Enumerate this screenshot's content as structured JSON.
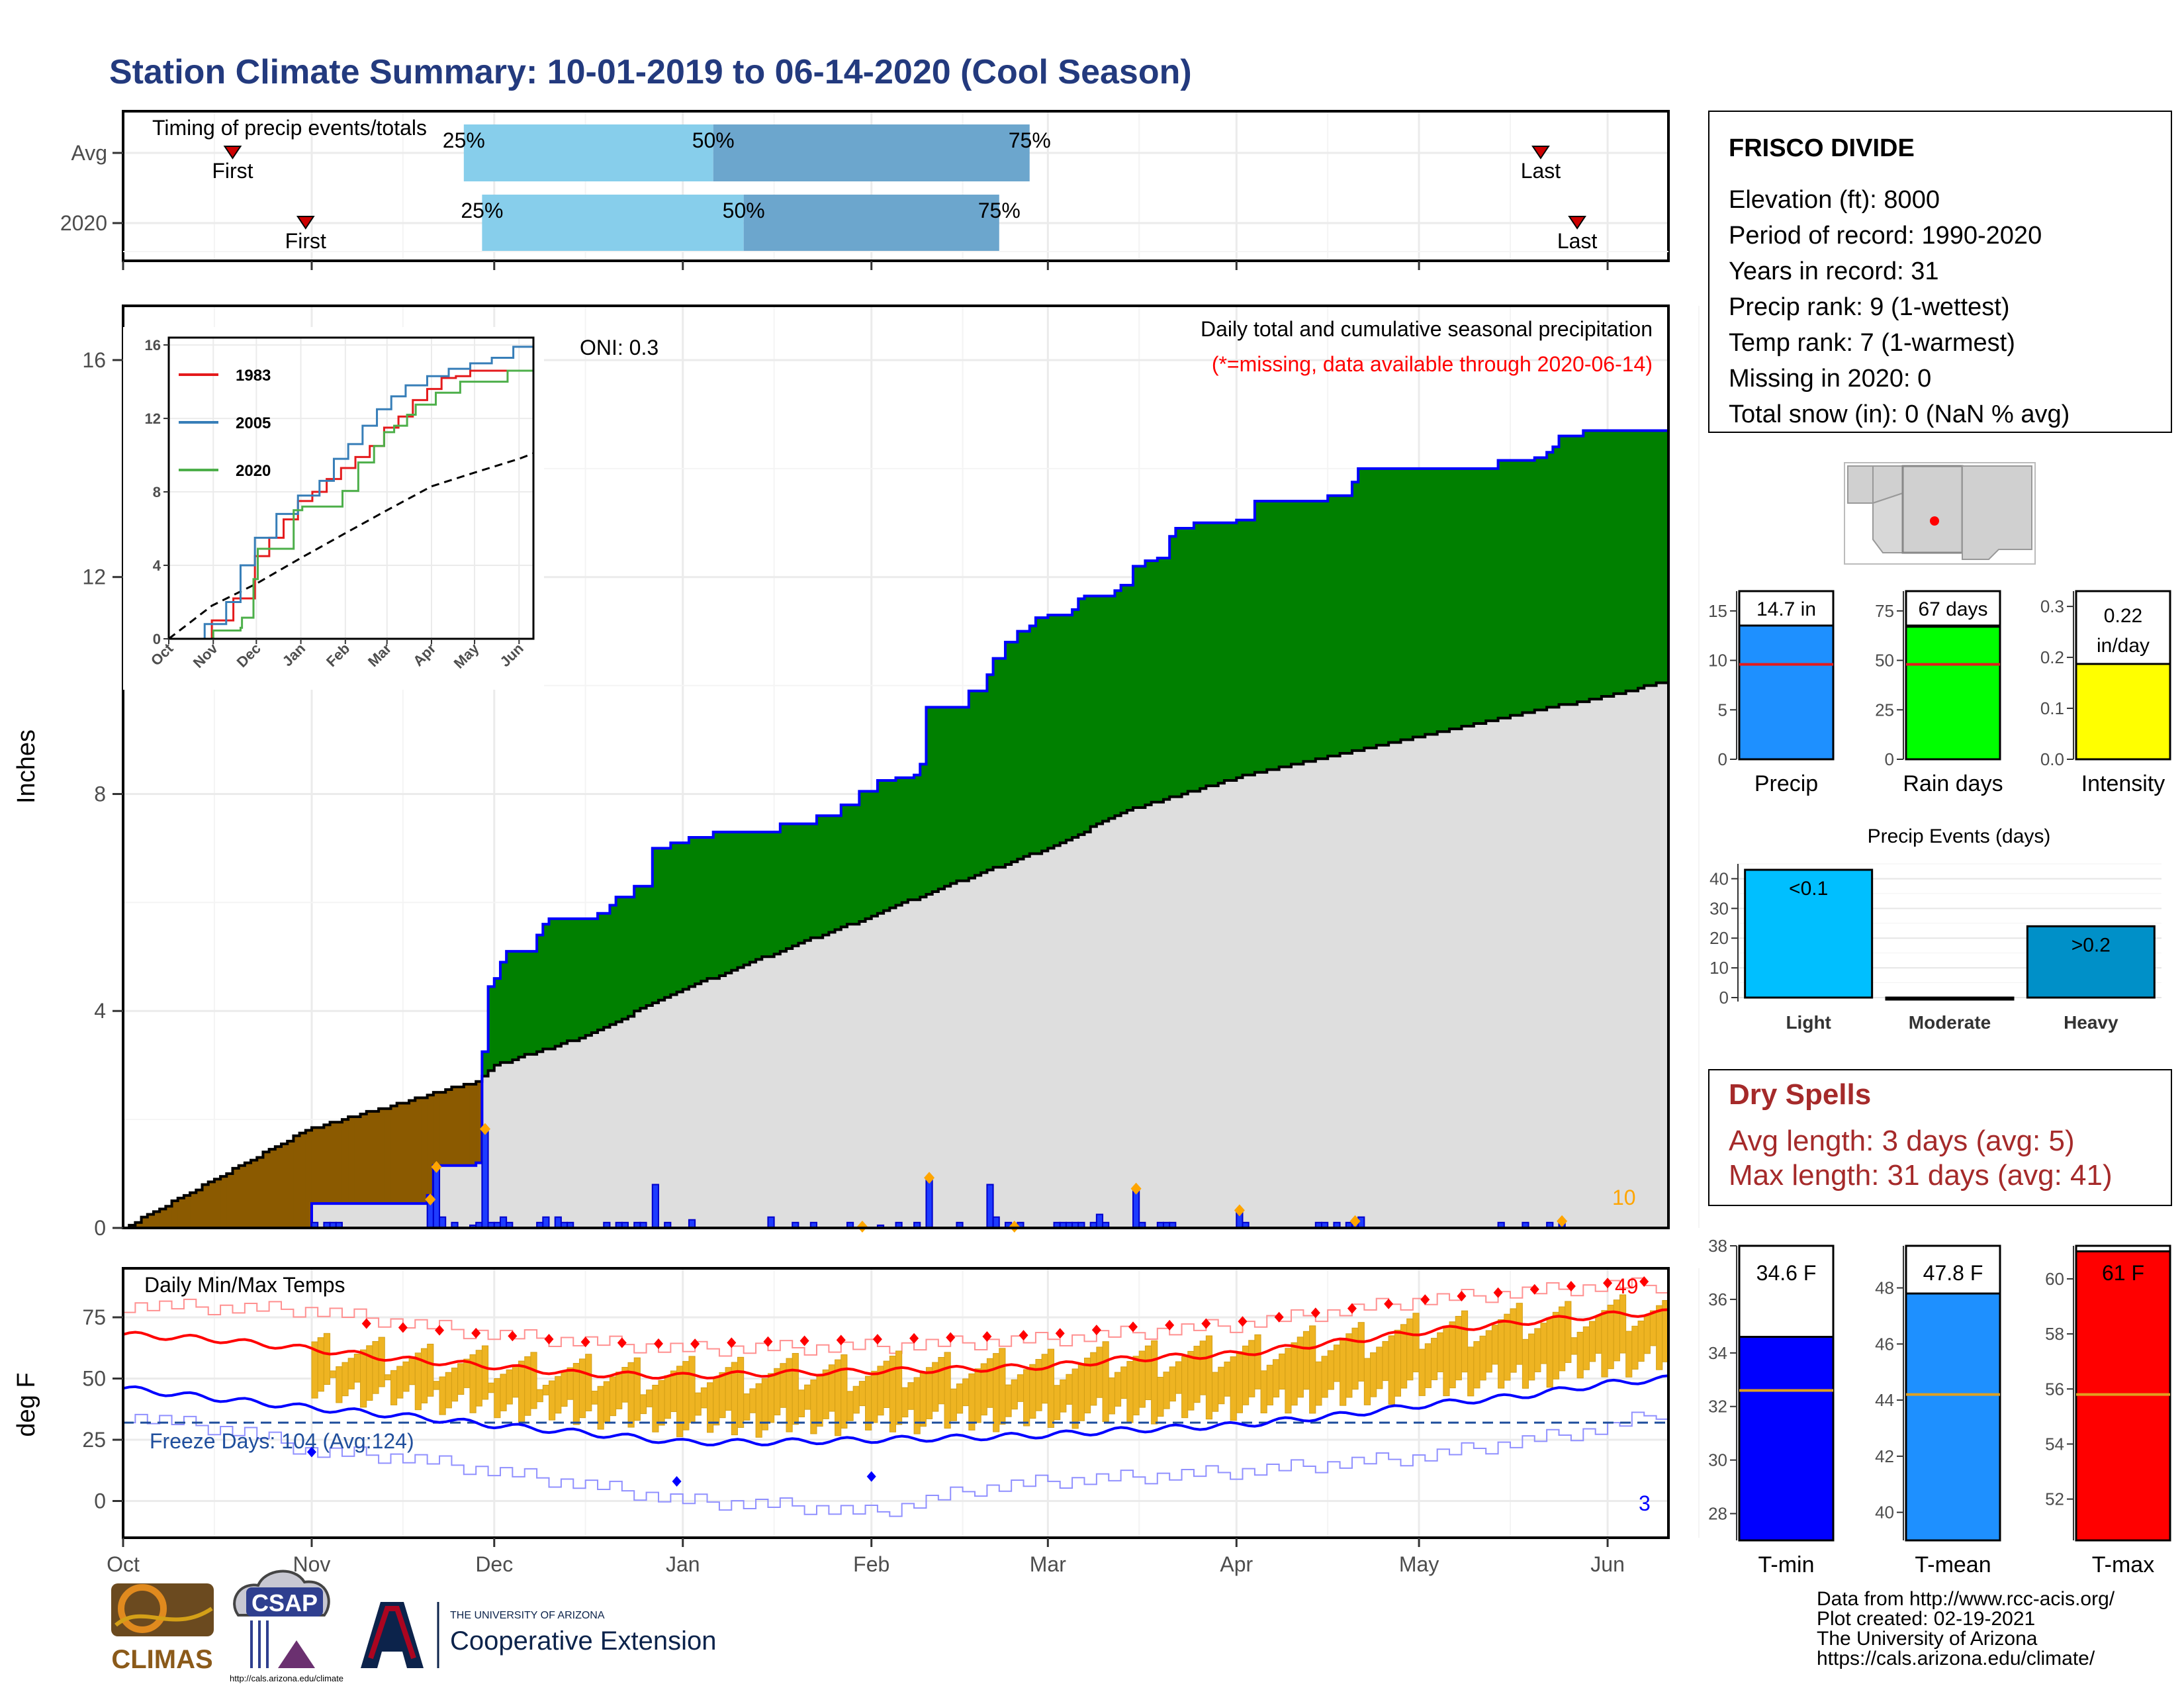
{
  "title": "Station Climate Summary: 10-01-2019 to 06-14-2020 (Cool Season)",
  "station": {
    "name": "FRISCO DIVIDE",
    "lines": [
      "Elevation (ft): 8000",
      "Period of record: 1990-2020",
      "Years in record: 31",
      "Precip rank: 9 (1-wettest)",
      "Temp rank: 7 (1-warmest)",
      "Missing in 2020: 0",
      "Total snow (in): 0 (NaN % avg)"
    ]
  },
  "timing": {
    "label": "Timing of precip events/totals",
    "rows": [
      {
        "name": "Avg",
        "first_doy": 18,
        "last_doy": 233,
        "p25": 56,
        "p50": 97,
        "p75": 149,
        "first_label": "First",
        "last_label": "Last",
        "pct": [
          "25%",
          "50%",
          "75%"
        ]
      },
      {
        "name": "2020",
        "first_doy": 30,
        "last_doy": 239,
        "p25": 59,
        "p50": 102,
        "p75": 144,
        "first_label": "First",
        "last_label": "Last",
        "pct": [
          "25%",
          "50%",
          "75%"
        ]
      }
    ]
  },
  "months": [
    "Oct",
    "Nov",
    "Dec",
    "Jan",
    "Feb",
    "Mar",
    "Apr",
    "May",
    "Jun"
  ],
  "month_start_doy": [
    0,
    31,
    61,
    92,
    123,
    152,
    183,
    213,
    244
  ],
  "precip_panel": {
    "ylabel": "Inches",
    "yticks": [
      0,
      4,
      8,
      12,
      16
    ],
    "annotation_title": "Daily total and cumulative seasonal precipitation",
    "annotation_missing": "(*=missing, data available through 2020-06-14)",
    "oni": "ONI: 0.3",
    "corner_count": "10",
    "cumulative_2020": [
      [
        0,
        0
      ],
      [
        30,
        0
      ],
      [
        31,
        0.45
      ],
      [
        50,
        0.6
      ],
      [
        51,
        1.15
      ],
      [
        58,
        1.2
      ],
      [
        59,
        3.25
      ],
      [
        60,
        4.45
      ],
      [
        61,
        4.6
      ],
      [
        62,
        4.9
      ],
      [
        63,
        5.1
      ],
      [
        67,
        5.1
      ],
      [
        68,
        5.4
      ],
      [
        69,
        5.6
      ],
      [
        70,
        5.7
      ],
      [
        78,
        5.8
      ],
      [
        80,
        5.95
      ],
      [
        81,
        6.1
      ],
      [
        84,
        6.3
      ],
      [
        86,
        6.3
      ],
      [
        87,
        7.0
      ],
      [
        90,
        7.1
      ],
      [
        93,
        7.2
      ],
      [
        97,
        7.3
      ],
      [
        103,
        7.3
      ],
      [
        108,
        7.45
      ],
      [
        110,
        7.45
      ],
      [
        114,
        7.6
      ],
      [
        118,
        7.8
      ],
      [
        121,
        8.05
      ],
      [
        124,
        8.25
      ],
      [
        127,
        8.3
      ],
      [
        130,
        8.35
      ],
      [
        131,
        8.55
      ],
      [
        132,
        9.6
      ],
      [
        139,
        9.9
      ],
      [
        142,
        10.2
      ],
      [
        143,
        10.5
      ],
      [
        145,
        10.8
      ],
      [
        147,
        11.0
      ],
      [
        149,
        11.1
      ],
      [
        150,
        11.25
      ],
      [
        152,
        11.3
      ],
      [
        156,
        11.4
      ],
      [
        157,
        11.6
      ],
      [
        158,
        11.65
      ],
      [
        163,
        11.75
      ],
      [
        164,
        11.85
      ],
      [
        166,
        12.2
      ],
      [
        168,
        12.3
      ],
      [
        170,
        12.35
      ],
      [
        172,
        12.75
      ],
      [
        173,
        12.9
      ],
      [
        176,
        13.0
      ],
      [
        183,
        13.05
      ],
      [
        186,
        13.4
      ],
      [
        189,
        13.4
      ],
      [
        197,
        13.4
      ],
      [
        198,
        13.5
      ],
      [
        201,
        13.5
      ],
      [
        202,
        13.75
      ],
      [
        203,
        14.0
      ],
      [
        206,
        14.0
      ],
      [
        210,
        14.0
      ],
      [
        225,
        14.0
      ],
      [
        226,
        14.15
      ],
      [
        232,
        14.2
      ],
      [
        234,
        14.3
      ],
      [
        235,
        14.4
      ],
      [
        236,
        14.6
      ],
      [
        240,
        14.7
      ],
      [
        254,
        14.7
      ]
    ],
    "cumulative_avg": [
      [
        0,
        0
      ],
      [
        30,
        1.8
      ],
      [
        50,
        2.45
      ],
      [
        58,
        2.7
      ],
      [
        61,
        3.0
      ],
      [
        75,
        3.5
      ],
      [
        92,
        4.4
      ],
      [
        110,
        5.2
      ],
      [
        123,
        5.75
      ],
      [
        135,
        6.3
      ],
      [
        152,
        7.0
      ],
      [
        165,
        7.7
      ],
      [
        183,
        8.3
      ],
      [
        200,
        8.75
      ],
      [
        213,
        9.05
      ],
      [
        230,
        9.5
      ],
      [
        244,
        9.8
      ],
      [
        254,
        10.1
      ]
    ],
    "daily": [
      [
        31,
        0.1
      ],
      [
        33,
        0.1
      ],
      [
        34,
        0.1
      ],
      [
        35,
        0.1
      ],
      [
        50,
        0.5
      ],
      [
        51,
        1.1
      ],
      [
        52,
        0.2
      ],
      [
        54,
        0.1
      ],
      [
        57,
        0.05
      ],
      [
        58,
        0.1
      ],
      [
        59,
        1.8
      ],
      [
        60,
        0.1
      ],
      [
        61,
        0.1
      ],
      [
        62,
        0.2
      ],
      [
        63,
        0.1
      ],
      [
        68,
        0.1
      ],
      [
        69,
        0.2
      ],
      [
        71,
        0.2
      ],
      [
        72,
        0.1
      ],
      [
        73,
        0.1
      ],
      [
        79,
        0.1
      ],
      [
        81,
        0.1
      ],
      [
        82,
        0.1
      ],
      [
        84,
        0.1
      ],
      [
        85,
        0.1
      ],
      [
        87,
        0.8
      ],
      [
        89,
        0.1
      ],
      [
        93,
        0.15
      ],
      [
        106,
        0.2
      ],
      [
        110,
        0.1
      ],
      [
        113,
        0.1
      ],
      [
        119,
        0.1
      ],
      [
        124,
        0.05
      ],
      [
        127,
        0.1
      ],
      [
        130,
        0.1
      ],
      [
        132,
        0.9
      ],
      [
        137,
        0.1
      ],
      [
        142,
        0.8
      ],
      [
        143,
        0.2
      ],
      [
        145,
        0.1
      ],
      [
        147,
        0.1
      ],
      [
        153,
        0.1
      ],
      [
        154,
        0.1
      ],
      [
        155,
        0.1
      ],
      [
        156,
        0.1
      ],
      [
        157,
        0.1
      ],
      [
        159,
        0.1
      ],
      [
        160,
        0.25
      ],
      [
        161,
        0.1
      ],
      [
        166,
        0.7
      ],
      [
        167,
        0.1
      ],
      [
        170,
        0.1
      ],
      [
        171,
        0.1
      ],
      [
        172,
        0.1
      ],
      [
        183,
        0.3
      ],
      [
        184,
        0.1
      ],
      [
        196,
        0.1
      ],
      [
        197,
        0.1
      ],
      [
        199,
        0.1
      ],
      [
        201,
        0.1
      ],
      [
        202,
        0.1
      ],
      [
        203,
        0.2
      ],
      [
        226,
        0.1
      ],
      [
        230,
        0.1
      ],
      [
        234,
        0.1
      ],
      [
        236,
        0.1
      ]
    ],
    "trace_markers": [
      50,
      51,
      59,
      132,
      121,
      146,
      166,
      183,
      202,
      236
    ]
  },
  "inset": {
    "yticks": [
      0,
      4,
      8,
      12,
      16
    ],
    "months": [
      "Oct",
      "Nov",
      "Dec",
      "Jan",
      "Feb",
      "Mar",
      "Apr",
      "May",
      "Jun"
    ],
    "series": [
      {
        "name": "1983",
        "color": "#e41a1c",
        "points": [
          [
            0,
            0
          ],
          [
            30,
            1.0
          ],
          [
            45,
            2.2
          ],
          [
            60,
            4.5
          ],
          [
            70,
            5.5
          ],
          [
            80,
            6.5
          ],
          [
            90,
            7.5
          ],
          [
            100,
            8.0
          ],
          [
            110,
            8.7
          ],
          [
            120,
            9.3
          ],
          [
            130,
            9.9
          ],
          [
            140,
            10.5
          ],
          [
            150,
            11.5
          ],
          [
            160,
            12.1
          ],
          [
            170,
            13.0
          ],
          [
            180,
            13.6
          ],
          [
            190,
            14.2
          ],
          [
            200,
            14.3
          ],
          [
            210,
            14.6
          ],
          [
            254,
            14.6
          ]
        ]
      },
      {
        "name": "2005",
        "color": "#377eb8",
        "points": [
          [
            0,
            0
          ],
          [
            25,
            0.8
          ],
          [
            40,
            2.0
          ],
          [
            50,
            4.0
          ],
          [
            60,
            5.5
          ],
          [
            75,
            6.8
          ],
          [
            90,
            7.8
          ],
          [
            105,
            8.6
          ],
          [
            115,
            9.8
          ],
          [
            125,
            10.6
          ],
          [
            135,
            11.6
          ],
          [
            145,
            12.5
          ],
          [
            155,
            13.2
          ],
          [
            165,
            13.8
          ],
          [
            180,
            14.3
          ],
          [
            195,
            14.7
          ],
          [
            210,
            15.0
          ],
          [
            225,
            15.3
          ],
          [
            240,
            15.9
          ],
          [
            254,
            16.2
          ]
        ]
      },
      {
        "name": "2020",
        "color": "#4daf4a",
        "points": [
          [
            0,
            0
          ],
          [
            30,
            0
          ],
          [
            31,
            0.45
          ],
          [
            50,
            0.6
          ],
          [
            51,
            1.15
          ],
          [
            59,
            3.25
          ],
          [
            62,
            4.9
          ],
          [
            87,
            7.0
          ],
          [
            93,
            7.2
          ],
          [
            121,
            8.05
          ],
          [
            132,
            9.6
          ],
          [
            143,
            10.5
          ],
          [
            150,
            11.25
          ],
          [
            157,
            11.6
          ],
          [
            166,
            12.2
          ],
          [
            172,
            12.75
          ],
          [
            186,
            13.4
          ],
          [
            203,
            14.0
          ],
          [
            225,
            14.0
          ],
          [
            236,
            14.6
          ],
          [
            254,
            14.7
          ]
        ]
      }
    ],
    "avg": [
      [
        0,
        0
      ],
      [
        30,
        1.8
      ],
      [
        61,
        3.0
      ],
      [
        92,
        4.4
      ],
      [
        123,
        5.75
      ],
      [
        152,
        7.0
      ],
      [
        183,
        8.3
      ],
      [
        213,
        9.05
      ],
      [
        244,
        9.8
      ],
      [
        254,
        10.1
      ]
    ]
  },
  "temp_panel": {
    "ylabel": "deg F",
    "title": "Daily Min/Max Temps",
    "yticks": [
      0,
      25,
      50,
      75
    ],
    "freeze_text": "Freeze Days: 104 (Avg:124)",
    "freeze_line": 32,
    "count_high": "49",
    "count_low": "3",
    "avg_max": [
      [
        0,
        68
      ],
      [
        15,
        66
      ],
      [
        31,
        62
      ],
      [
        45,
        58
      ],
      [
        61,
        55
      ],
      [
        75,
        52
      ],
      [
        92,
        51
      ],
      [
        105,
        52
      ],
      [
        123,
        53
      ],
      [
        140,
        54
      ],
      [
        152,
        55
      ],
      [
        165,
        58
      ],
      [
        183,
        60
      ],
      [
        200,
        65
      ],
      [
        213,
        69
      ],
      [
        230,
        73
      ],
      [
        244,
        76
      ],
      [
        254,
        77
      ]
    ],
    "avg_min": [
      [
        0,
        46
      ],
      [
        15,
        42
      ],
      [
        31,
        38
      ],
      [
        45,
        35
      ],
      [
        61,
        31
      ],
      [
        75,
        28
      ],
      [
        92,
        24
      ],
      [
        105,
        24
      ],
      [
        123,
        25
      ],
      [
        140,
        26
      ],
      [
        152,
        27
      ],
      [
        165,
        29
      ],
      [
        183,
        31
      ],
      [
        200,
        35
      ],
      [
        213,
        39
      ],
      [
        230,
        43
      ],
      [
        244,
        48
      ],
      [
        254,
        50
      ]
    ],
    "rec_max": [
      [
        0,
        80
      ],
      [
        30,
        78
      ],
      [
        60,
        68
      ],
      [
        92,
        62
      ],
      [
        123,
        63
      ],
      [
        152,
        66
      ],
      [
        183,
        72
      ],
      [
        213,
        82
      ],
      [
        244,
        88
      ],
      [
        254,
        88
      ]
    ],
    "rec_min": [
      [
        0,
        35
      ],
      [
        20,
        28
      ],
      [
        31,
        20
      ],
      [
        45,
        18
      ],
      [
        61,
        12
      ],
      [
        80,
        5
      ],
      [
        92,
        0
      ],
      [
        110,
        -2
      ],
      [
        123,
        -5
      ],
      [
        140,
        5
      ],
      [
        152,
        8
      ],
      [
        183,
        12
      ],
      [
        213,
        18
      ],
      [
        244,
        30
      ],
      [
        254,
        38
      ]
    ]
  },
  "bars_small": [
    {
      "label": "Precip",
      "value_text": "14.7 in",
      "value": 14.7,
      "avg": 9.6,
      "color": "#1e90ff",
      "yticks": [
        0,
        5,
        10,
        15
      ],
      "ymin": 0,
      "ymax": 17
    },
    {
      "label": "Rain days",
      "value_text": "67 days",
      "value": 67,
      "avg": 48,
      "color": "#00ff00",
      "yticks": [
        0,
        25,
        50,
        75
      ],
      "ymin": 0,
      "ymax": 85
    },
    {
      "label": "Intensity",
      "value_text": "0.22 in/day",
      "value": 0.22,
      "avg": 0.2,
      "color": "#ffff00",
      "yticks": [
        0.0,
        0.1,
        0.2,
        0.3
      ],
      "ymin": 0,
      "ymax": 0.33
    }
  ],
  "events": {
    "title": "Precip Events (days)",
    "categories": [
      "Light",
      "Moderate",
      "Heavy"
    ],
    "values": [
      43,
      0,
      24
    ],
    "labels": [
      "<0.1",
      "",
      ">0.2"
    ],
    "colors": [
      "#00bfff",
      "#1e90ff",
      "#0090c8"
    ],
    "yticks": [
      0,
      10,
      20,
      30,
      40
    ]
  },
  "dry_spells": {
    "title": "Dry Spells",
    "avg_line": "Avg length: 3 days (avg: 5)",
    "max_line": "Max length: 31 days (avg: 41)"
  },
  "temp_bars": [
    {
      "label": "T-min",
      "value_text": "34.6 F",
      "value": 34.6,
      "avg": 32.6,
      "color": "#0000ff",
      "yticks": [
        28,
        30,
        32,
        34,
        36,
        38
      ],
      "ymin": 27,
      "ymax": 38
    },
    {
      "label": "T-mean",
      "value_text": "47.8 F",
      "value": 47.8,
      "avg": 44.2,
      "color": "#1e90ff",
      "yticks": [
        40,
        42,
        44,
        46,
        48
      ],
      "ymin": 39,
      "ymax": 49.5
    },
    {
      "label": "T-max",
      "value_text": "61 F",
      "value": 61,
      "avg": 55.8,
      "color": "#ff0000",
      "yticks": [
        52,
        54,
        56,
        58,
        60
      ],
      "ymin": 50.5,
      "ymax": 61.2
    }
  ],
  "footer": [
    "Data from http://www.rcc-acis.org/",
    "Plot created: 02-19-2021",
    "The University of Arizona",
    "https://cals.arizona.edu/climate/"
  ],
  "logos": {
    "climas": "CLIMAS",
    "csap": "CSAP",
    "csap_url": "http://cals.arizona.edu/climate",
    "ua_small": "THE UNIVERSITY OF ARIZONA",
    "coop": "Cooperative Extension"
  }
}
